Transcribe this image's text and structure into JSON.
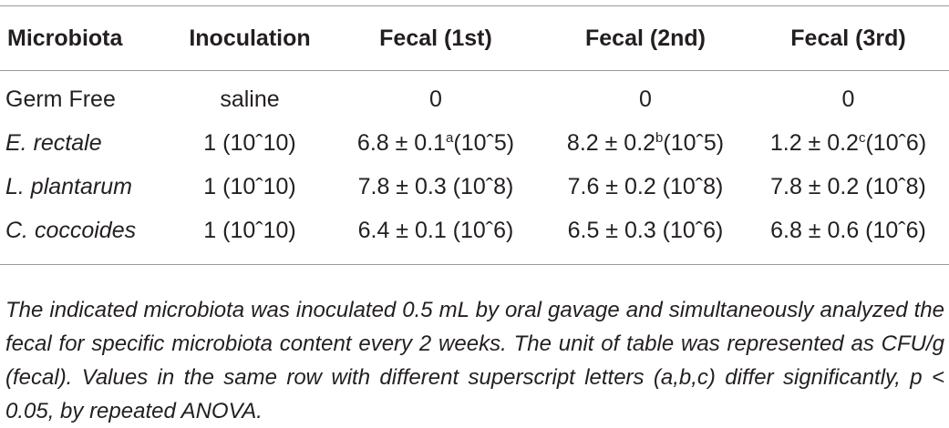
{
  "table": {
    "headers": [
      "Microbiota",
      "Inoculation",
      "Fecal (1st)",
      "Fecal (2nd)",
      "Fecal (3rd)"
    ],
    "rows": [
      {
        "microbiota": "Germ Free",
        "inoculation": "saline",
        "fecal_1st": {
          "main": "0",
          "sup": "",
          "tail": ""
        },
        "fecal_2nd": {
          "main": "0",
          "sup": "",
          "tail": ""
        },
        "fecal_3rd": {
          "main": "0",
          "sup": "",
          "tail": ""
        }
      },
      {
        "microbiota": "E. rectale",
        "inoculation": "1 (10ˆ10)",
        "fecal_1st": {
          "main": "6.8 ± 0.1",
          "sup": "a",
          "tail": "(10ˆ5)"
        },
        "fecal_2nd": {
          "main": "8.2 ± 0.2",
          "sup": "b",
          "tail": "(10ˆ5)"
        },
        "fecal_3rd": {
          "main": "1.2 ± 0.2",
          "sup": "c",
          "tail": "(10ˆ6)"
        }
      },
      {
        "microbiota": "L. plantarum",
        "inoculation": "1 (10ˆ10)",
        "fecal_1st": {
          "main": "7.8 ± 0.3 (10ˆ8)",
          "sup": "",
          "tail": ""
        },
        "fecal_2nd": {
          "main": "7.6 ± 0.2 (10ˆ8)",
          "sup": "",
          "tail": ""
        },
        "fecal_3rd": {
          "main": "7.8 ± 0.2 (10ˆ8)",
          "sup": "",
          "tail": ""
        }
      },
      {
        "microbiota": "C. coccoides",
        "inoculation": "1 (10ˆ10)",
        "fecal_1st": {
          "main": "6.4 ± 0.1 (10ˆ6)",
          "sup": "",
          "tail": ""
        },
        "fecal_2nd": {
          "main": "6.5 ± 0.3 (10ˆ6)",
          "sup": "",
          "tail": ""
        },
        "fecal_3rd": {
          "main": "6.8 ± 0.6 (10ˆ6)",
          "sup": "",
          "tail": ""
        }
      }
    ]
  },
  "footnote": "The indicated microbiota was inoculated 0.5 mL by oral gavage and simultaneously analyzed the fecal for specific microbiota content every 2 weeks. The unit of table was represented as CFU/g (fecal). Values in the same row with different superscript letters (a,b,c) differ significantly, p < 0.05, by repeated ANOVA."
}
